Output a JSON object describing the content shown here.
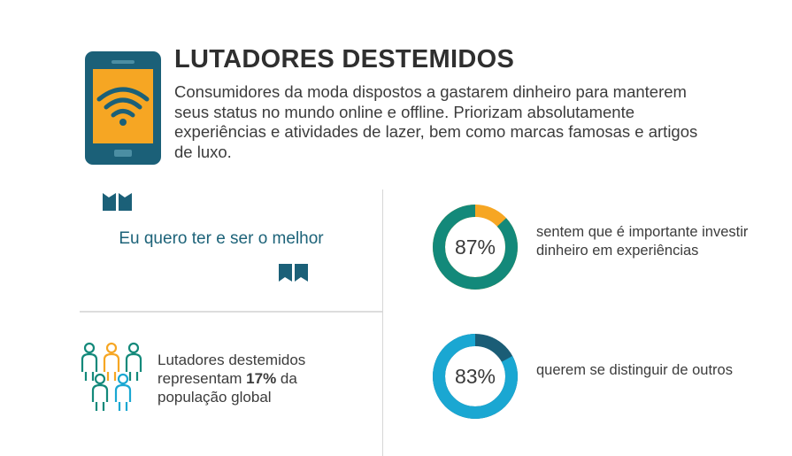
{
  "header": {
    "title": "LUTADORES DESTEMIDOS",
    "description": "Consumidores da moda dispostos a gastarem dinheiro para manterem seus status no mundo online e offline. Priorizam absolutamente experiências e atividades de lazer, bem como marcas famosas e artigos de luxo.",
    "icon": "smartphone-wifi-icon"
  },
  "quote": {
    "text": "Eu quero ter e ser o melhor",
    "open_icon": "quote-open-icon",
    "close_icon": "quote-close-icon"
  },
  "population": {
    "text_before": "Lutadores destemidos representam ",
    "highlight": "17%",
    "text_after": " da população global",
    "icon": "people-group-icon"
  },
  "chart_data": [
    {
      "type": "pie",
      "variant": "donut",
      "value": 87,
      "label": "87%",
      "description": "sentem que é importante investir dinheiro em experiências",
      "colors": {
        "value": "#13897a",
        "remainder": "#f6a623"
      }
    },
    {
      "type": "pie",
      "variant": "donut",
      "value": 83,
      "label": "83%",
      "description": "querem se distinguir de outros",
      "colors": {
        "value": "#1aa7d2",
        "remainder": "#1b5d76"
      }
    }
  ],
  "colors": {
    "teal_dark": "#1b6078",
    "orange": "#f6a623",
    "green": "#13897a",
    "cyan": "#1aa7d2"
  }
}
